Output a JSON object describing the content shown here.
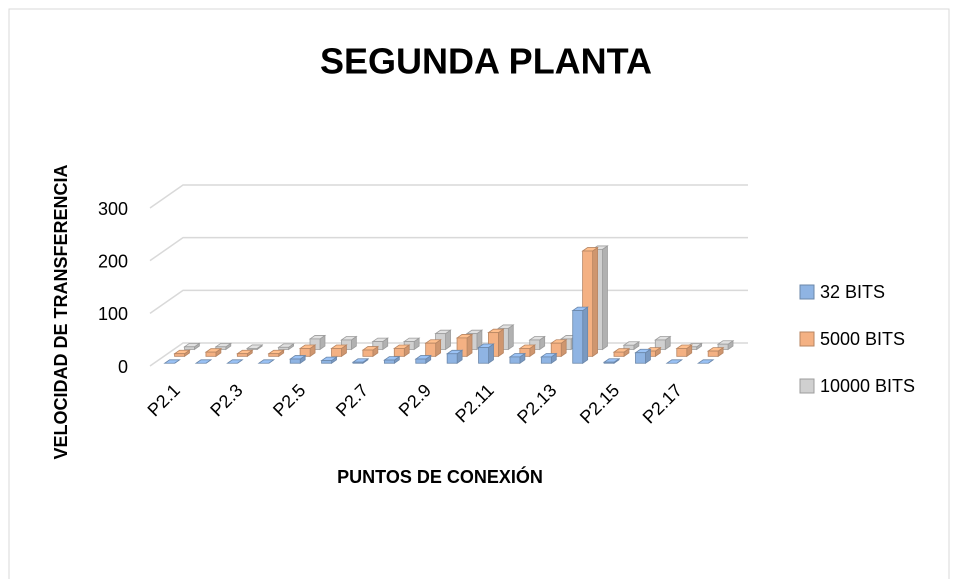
{
  "chart_data": {
    "type": "bar3d",
    "title": "SEGUNDA PLANTA",
    "x_label": "PUNTOS DE CONEXIÓN",
    "y_label": "VELOCIDAD  DE  TRANSFERENCIA",
    "categories": [
      "P2.1",
      null,
      "P2.3",
      null,
      "P2.5",
      null,
      "P2.7",
      null,
      "P2.9",
      null,
      "P2.11",
      null,
      "P2.13",
      null,
      "P2.15",
      null,
      "P2.17",
      null
    ],
    "series": [
      {
        "name": "32 BITS",
        "color": "#8fb4e3",
        "values": [
          0,
          0,
          0,
          0,
          8,
          5,
          2,
          6,
          8,
          18,
          30,
          12,
          12,
          100,
          2,
          20,
          0,
          0
        ]
      },
      {
        "name": "5000 BITS",
        "color": "#f4b183",
        "values": [
          5,
          8,
          5,
          5,
          15,
          15,
          12,
          15,
          25,
          35,
          45,
          15,
          25,
          200,
          8,
          10,
          15,
          10
        ]
      },
      {
        "name": "10000 BITS",
        "color": "#d0d0d0",
        "values": [
          5,
          5,
          2,
          4,
          20,
          18,
          15,
          15,
          30,
          30,
          40,
          18,
          20,
          190,
          8,
          18,
          5,
          10
        ]
      }
    ],
    "ylim": [
      0,
      300
    ],
    "yticks": [
      0,
      100,
      200,
      300
    ],
    "grid": true,
    "legend": "right"
  }
}
